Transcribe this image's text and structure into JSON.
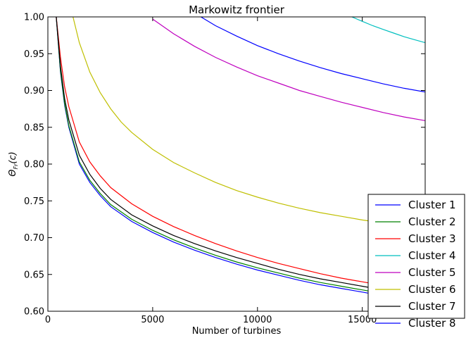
{
  "chart_data": {
    "type": "line",
    "title": "Markowitz frontier",
    "xlabel": "Number of turbines",
    "ylabel": "Θ",
    "ylabel_sub": "Fr",
    "ylabel_suffix": "(c)",
    "xlim": [
      0,
      18000
    ],
    "ylim": [
      0.6,
      1.0
    ],
    "xticks": [
      0,
      5000,
      10000,
      15000
    ],
    "yticks": [
      "0.60",
      "0.65",
      "0.70",
      "0.75",
      "0.80",
      "0.85",
      "0.90",
      "0.95",
      "1.00"
    ],
    "legend_position": "lower-right",
    "series": [
      {
        "name": "Cluster 1",
        "color": "#0000ff",
        "x": [
          400,
          600,
          800,
          1000,
          1500,
          2000,
          2500,
          3000,
          4000,
          5000,
          6000,
          7000,
          8000,
          9000,
          10000,
          11000,
          12000,
          13000,
          14000,
          15000,
          16000,
          17000,
          18000
        ],
        "y": [
          1.0,
          0.925,
          0.88,
          0.85,
          0.8,
          0.775,
          0.757,
          0.742,
          0.722,
          0.707,
          0.694,
          0.683,
          0.673,
          0.664,
          0.656,
          0.649,
          0.642,
          0.636,
          0.631,
          0.626,
          0.621,
          0.617,
          0.614
        ]
      },
      {
        "name": "Cluster 2",
        "color": "#008000",
        "x": [
          400,
          600,
          800,
          1000,
          1500,
          2000,
          2500,
          3000,
          4000,
          5000,
          6000,
          7000,
          8000,
          9000,
          10000,
          11000,
          12000,
          13000,
          14000,
          15000,
          16000,
          17000,
          18000
        ],
        "y": [
          1.0,
          0.927,
          0.882,
          0.852,
          0.803,
          0.778,
          0.76,
          0.745,
          0.725,
          0.71,
          0.697,
          0.686,
          0.676,
          0.667,
          0.659,
          0.652,
          0.645,
          0.639,
          0.634,
          0.629,
          0.624,
          0.62,
          0.617
        ]
      },
      {
        "name": "Cluster 3",
        "color": "#ff0000",
        "x": [
          400,
          600,
          800,
          1000,
          1500,
          2000,
          2500,
          3000,
          4000,
          5000,
          6000,
          7000,
          8000,
          9000,
          10000,
          11000,
          12000,
          13000,
          14000,
          15000,
          16000,
          17000,
          18000
        ],
        "y": [
          1.0,
          0.945,
          0.905,
          0.878,
          0.83,
          0.803,
          0.784,
          0.768,
          0.746,
          0.729,
          0.715,
          0.703,
          0.692,
          0.682,
          0.673,
          0.665,
          0.658,
          0.651,
          0.645,
          0.64,
          0.635,
          0.631,
          0.627
        ]
      },
      {
        "name": "Cluster 4",
        "color": "#00bfbf",
        "x": [
          14500,
          15000,
          15500,
          16000,
          16500,
          17000,
          17500,
          18000
        ],
        "y": [
          1.0,
          0.994,
          0.988,
          0.983,
          0.978,
          0.973,
          0.969,
          0.965
        ]
      },
      {
        "name": "Cluster 5",
        "color": "#bf00bf",
        "x": [
          5000,
          6000,
          7000,
          8000,
          9000,
          10000,
          11000,
          12000,
          13000,
          14000,
          15000,
          16000,
          17000,
          18000
        ],
        "y": [
          0.997,
          0.977,
          0.96,
          0.945,
          0.932,
          0.92,
          0.91,
          0.9,
          0.892,
          0.884,
          0.877,
          0.87,
          0.864,
          0.859
        ]
      },
      {
        "name": "Cluster 6",
        "color": "#bfbf00",
        "x": [
          1200,
          1500,
          2000,
          2500,
          3000,
          3500,
          4000,
          5000,
          6000,
          7000,
          8000,
          9000,
          10000,
          11000,
          12000,
          13000,
          14000,
          15000,
          16000,
          17000,
          18000
        ],
        "y": [
          1.0,
          0.965,
          0.925,
          0.897,
          0.875,
          0.857,
          0.843,
          0.82,
          0.802,
          0.788,
          0.775,
          0.764,
          0.755,
          0.747,
          0.74,
          0.734,
          0.729,
          0.724,
          0.72,
          0.716,
          0.712
        ]
      },
      {
        "name": "Cluster 7",
        "color": "#000000",
        "x": [
          400,
          600,
          800,
          1000,
          1500,
          2000,
          2500,
          3000,
          4000,
          5000,
          6000,
          7000,
          8000,
          9000,
          10000,
          11000,
          12000,
          13000,
          14000,
          15000,
          16000,
          17000,
          18000
        ],
        "y": [
          1.0,
          0.933,
          0.889,
          0.86,
          0.812,
          0.786,
          0.767,
          0.752,
          0.731,
          0.716,
          0.703,
          0.692,
          0.682,
          0.673,
          0.665,
          0.657,
          0.65,
          0.644,
          0.639,
          0.634,
          0.629,
          0.625,
          0.621
        ]
      },
      {
        "name": "Cluster 8",
        "color": "#0000ff",
        "x": [
          7300,
          8000,
          9000,
          10000,
          11000,
          12000,
          13000,
          14000,
          15000,
          16000,
          17000,
          18000
        ],
        "y": [
          1.0,
          0.988,
          0.974,
          0.961,
          0.95,
          0.94,
          0.931,
          0.923,
          0.916,
          0.909,
          0.903,
          0.898
        ]
      }
    ]
  }
}
